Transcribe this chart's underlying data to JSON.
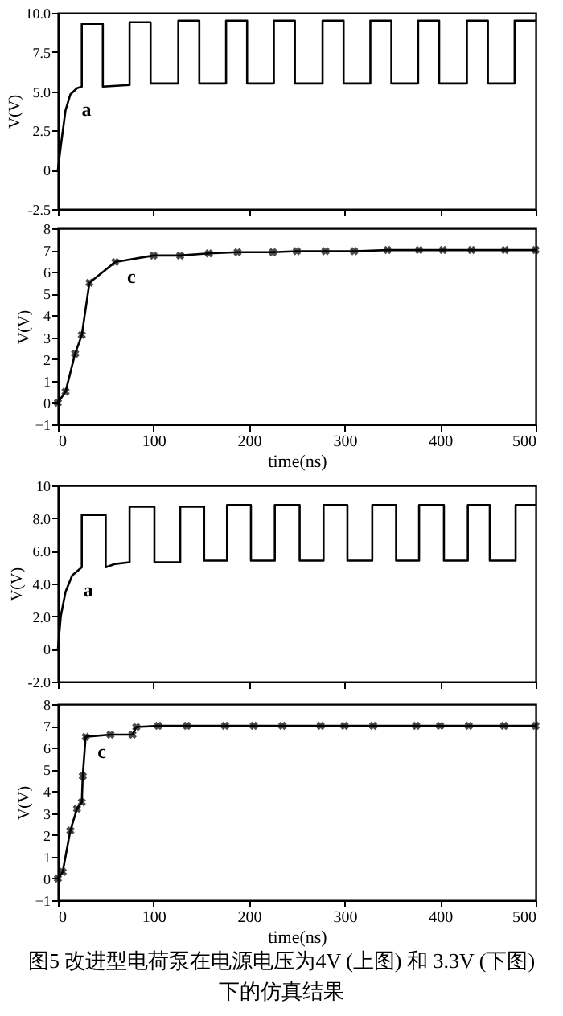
{
  "chart_data": [
    {
      "type": "line",
      "ylabel": "V(V)",
      "xlim": [
        0,
        500
      ],
      "xticks": [
        0,
        100,
        200,
        300,
        400,
        500
      ],
      "ylim": [
        -2.5,
        10
      ],
      "yticks": [
        {
          "value": -2.5,
          "label": "-2.5"
        },
        0,
        {
          "value": 2.5,
          "label": "2.5"
        },
        {
          "value": 5,
          "label": "5.0"
        },
        {
          "value": 7.5,
          "label": "7.5"
        },
        {
          "value": 10,
          "label": "10.0"
        }
      ],
      "tick_labels": "y",
      "annotations": [
        {
          "text": "a",
          "x": 13,
          "y": 4.8
        }
      ],
      "series": [
        {
          "color": "#000000",
          "x": [
            0,
            3,
            8,
            13,
            20,
            25,
            25,
            47,
            47,
            75,
            75,
            97,
            97,
            126,
            126,
            148,
            148,
            176,
            176,
            198,
            198,
            226,
            226,
            248,
            248,
            277,
            277,
            299,
            299,
            327,
            327,
            349,
            349,
            377,
            377,
            399,
            399,
            428,
            428,
            450,
            450,
            478,
            478,
            500
          ],
          "values": [
            0,
            1.5,
            3.8,
            4.8,
            5.2,
            5.3,
            9.3,
            9.3,
            5.3,
            5.4,
            9.4,
            9.4,
            5.5,
            5.5,
            9.5,
            9.5,
            5.5,
            5.5,
            9.5,
            9.5,
            5.5,
            5.5,
            9.5,
            9.5,
            5.5,
            5.5,
            9.5,
            9.5,
            5.5,
            5.5,
            9.5,
            9.5,
            5.5,
            5.5,
            9.5,
            9.5,
            5.5,
            5.5,
            9.5,
            9.5,
            5.5,
            5.5,
            9.5,
            9.5
          ]
        }
      ]
    },
    {
      "type": "line",
      "ylabel": "V(V)",
      "xlabel": "time(ns)",
      "xlim": [
        0,
        500
      ],
      "xticks": [
        0,
        100,
        200,
        300,
        400,
        500
      ],
      "ylim": [
        -1,
        8
      ],
      "yticks": [
        -1,
        0,
        1,
        2,
        3,
        4,
        5,
        6,
        7,
        8
      ],
      "marker": "cross",
      "annotations": [
        {
          "text": "c",
          "x": 60,
          "y": 6.45
        }
      ],
      "series": [
        {
          "color": "#000000",
          "x": [
            0,
            8,
            18,
            25,
            33,
            60,
            100,
            128,
            158,
            188,
            225,
            250,
            280,
            310,
            345,
            378,
            403,
            433,
            468,
            500
          ],
          "values": [
            0,
            0.5,
            2.25,
            3.1,
            5.5,
            6.45,
            6.75,
            6.75,
            6.85,
            6.9,
            6.9,
            6.95,
            6.95,
            6.95,
            7,
            7,
            7,
            7,
            7,
            7
          ]
        }
      ]
    },
    {
      "type": "line",
      "ylabel": "V(V)",
      "xlim": [
        0,
        500
      ],
      "xticks": [
        0,
        100,
        200,
        300,
        400,
        500
      ],
      "ylim": [
        -2,
        10
      ],
      "yticks": [
        {
          "value": -2,
          "label": "-2.0"
        },
        0,
        {
          "value": 2,
          "label": "2.0"
        },
        {
          "value": 4,
          "label": "4.0"
        },
        {
          "value": 6,
          "label": "6.0"
        },
        {
          "value": 8,
          "label": "8.0"
        },
        10
      ],
      "tick_labels": "y",
      "annotations": [
        {
          "text": "a",
          "x": 15,
          "y": 4.5
        }
      ],
      "series": [
        {
          "color": "#000000",
          "x": [
            0,
            3,
            8,
            15,
            25,
            25,
            50,
            50,
            60,
            75,
            75,
            101,
            101,
            128,
            128,
            153,
            153,
            177,
            177,
            202,
            202,
            227,
            227,
            253,
            253,
            278,
            278,
            303,
            303,
            329,
            329,
            354,
            354,
            378,
            378,
            404,
            404,
            429,
            429,
            452,
            452,
            479,
            479,
            500
          ],
          "values": [
            0,
            2,
            3.5,
            4.5,
            5.0,
            8.2,
            8.2,
            5.0,
            5.2,
            5.3,
            8.7,
            8.7,
            5.3,
            5.3,
            8.7,
            8.7,
            5.4,
            5.4,
            8.8,
            8.8,
            5.4,
            5.4,
            8.8,
            8.8,
            5.4,
            5.4,
            8.8,
            8.8,
            5.4,
            5.4,
            8.8,
            8.8,
            5.4,
            5.4,
            8.8,
            8.8,
            5.4,
            5.4,
            8.8,
            8.8,
            5.4,
            5.4,
            8.8,
            8.8
          ]
        }
      ]
    },
    {
      "type": "line",
      "ylabel": "V(V)",
      "xlabel": "time(ns)",
      "xlim": [
        0,
        500
      ],
      "xticks": [
        0,
        100,
        200,
        300,
        400,
        500
      ],
      "ylim": [
        -1,
        8
      ],
      "yticks": [
        -1,
        0,
        1,
        2,
        3,
        4,
        5,
        6,
        7,
        8
      ],
      "marker": "cross",
      "annotations": [
        {
          "text": "c",
          "x": 29,
          "y": 6.5
        },
        "图5  改进型电荷泵在电源电压为4V (上图) 和 3.3V (下图) 下的仿真结果"
      ],
      "series": [
        {
          "color": "#000000",
          "x": [
            0,
            5,
            13,
            20,
            25,
            26,
            29,
            55,
            78,
            82,
            105,
            135,
            175,
            205,
            235,
            275,
            300,
            330,
            375,
            400,
            430,
            467,
            500
          ],
          "values": [
            0,
            0.3,
            2.2,
            3.2,
            3.5,
            4.7,
            6.5,
            6.6,
            6.6,
            6.95,
            7,
            7,
            7,
            7,
            7,
            7,
            7,
            7,
            7,
            7,
            7,
            7,
            7
          ]
        }
      ]
    }
  ]
}
